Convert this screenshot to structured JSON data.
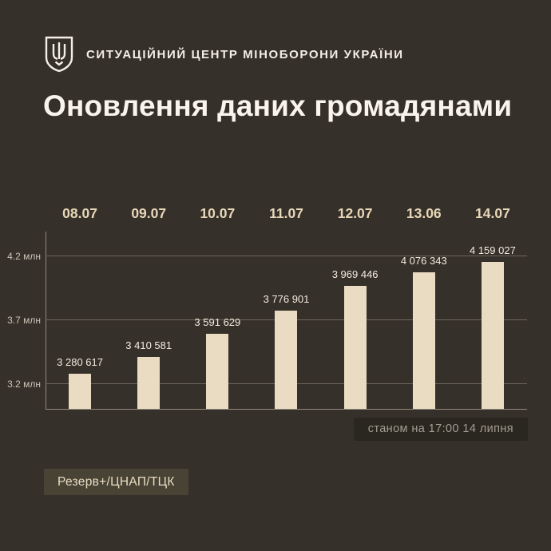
{
  "header": {
    "logo": "ukraine-trident-shield",
    "org_name": "СИТУАЦІЙНИЙ ЦЕНТР МІНОБОРОНИ УКРАЇНИ"
  },
  "title": "Оновлення даних громадянами",
  "chart_data": {
    "type": "bar",
    "categories": [
      "08.07",
      "09.07",
      "10.07",
      "11.07",
      "12.07",
      "13.06",
      "14.07"
    ],
    "values": [
      3280617,
      3410581,
      3591629,
      3776901,
      3969446,
      4076343,
      4159027
    ],
    "value_labels": [
      "3 280 617",
      "3 410 581",
      "3 591 629",
      "3 776 901",
      "3 969 446",
      "4 076 343",
      "4 159 027"
    ],
    "y_ticks": [
      {
        "value": 4200000,
        "label": "4.2 млн"
      },
      {
        "value": 3700000,
        "label": "3.7 млн"
      },
      {
        "value": 3200000,
        "label": "3.2 млн"
      }
    ],
    "baseline_value": 3000000,
    "top_value": 4394000,
    "title": "Оновлення даних громадянами",
    "xlabel": "",
    "ylabel": "",
    "grid": true,
    "legend_position": "none",
    "bar_color": "#e9dcc2"
  },
  "footnote": "станом на 17:00 14 липня",
  "source_badge": "Резерв+/ЦНАП/ТЦК",
  "colors": {
    "background": "#36302a",
    "bar": "#e9dcc2",
    "title_text": "#f9f5ec",
    "date_label": "#e8d8b8",
    "value_label": "#f1ecdf",
    "tick_label": "#c9c3b6",
    "gridline": "#6b655a",
    "axis": "#8f897d",
    "footnote_bg": "#2a2620",
    "footnote_text": "#a49d90",
    "source_badge_bg": "#494336",
    "source_badge_text": "#e9dcc2"
  }
}
